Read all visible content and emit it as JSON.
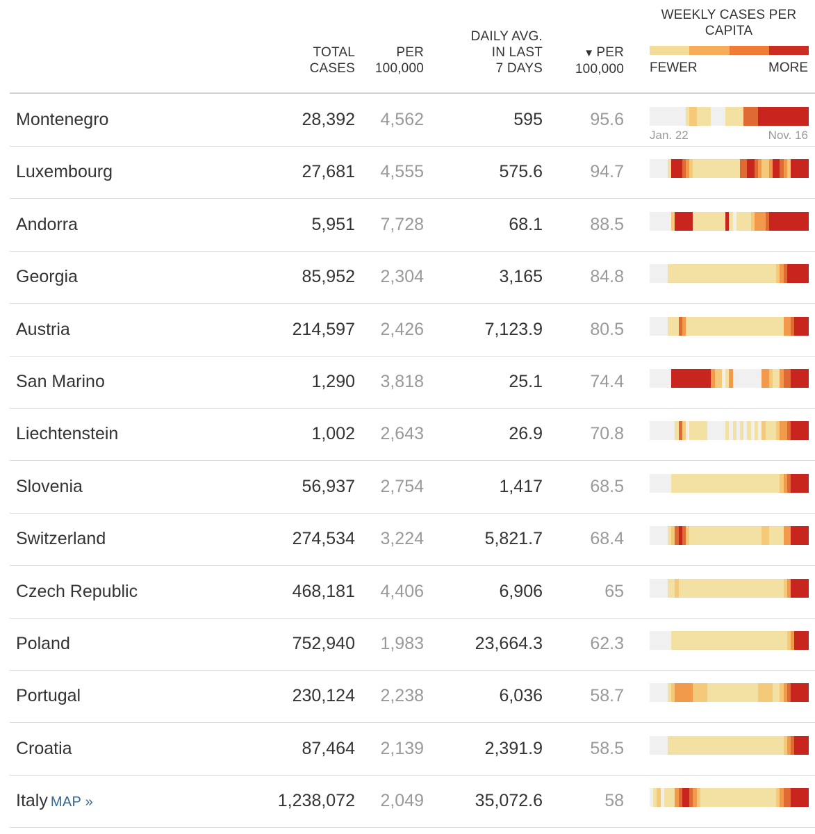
{
  "headers": {
    "total": [
      "TOTAL",
      "CASES"
    ],
    "per": [
      "PER",
      "100,000"
    ],
    "daily": [
      "DAILY AVG.",
      "IN LAST",
      "7 DAYS"
    ],
    "per2_arrow": "▼",
    "per2": [
      "PER",
      "100,000"
    ],
    "weekly": [
      "WEEKLY CASES PER",
      "CAPITA"
    ]
  },
  "legend": {
    "fewer": "FEWER",
    "more": "MORE",
    "colors": [
      "#f3dc97",
      "#f6ad5a",
      "#ee7c36",
      "#cb2d22"
    ]
  },
  "palette": {
    "0": "#f0f0f0",
    "1": "#f3e1a3",
    "2": "#f4c97a",
    "3": "#f19a4c",
    "4": "#e06a33",
    "5": "#c8251e"
  },
  "sparkline_dates": {
    "start": "Jan. 22",
    "end": "Nov. 16"
  },
  "rows": [
    {
      "country": "Montenegro",
      "total": "28,392",
      "per": "4,562",
      "daily": "595",
      "per2": "95.6",
      "levels": "00000000001221111000011111444455555555555555"
    },
    {
      "country": "Luxembourg",
      "total": "27,681",
      "per": "4,555",
      "daily": "575.6",
      "per2": "94.7",
      "levels": "00000155543211111111111114455432235543255555"
    },
    {
      "country": "Andorra",
      "total": "5,951",
      "per": "7,728",
      "daily": "68.1",
      "per2": "88.5",
      "levels": "00000025555511111111151011112333455555555555"
    },
    {
      "country": "Georgia",
      "total": "85,952",
      "per": "2,304",
      "daily": "3,165",
      "per2": "84.8",
      "levels": "00000111111111111111111111111111111234555555"
    },
    {
      "country": "Austria",
      "total": "214,597",
      "per": "2,426",
      "daily": "7,123.9",
      "per2": "80.5",
      "levels": "00000111431111111111111111111111111113345555"
    },
    {
      "country": "San Marino",
      "total": "1,290",
      "per": "3,818",
      "daily": "25.1",
      "per2": "74.4",
      "levels": "00000055555555555322013000000003321134455555"
    },
    {
      "country": "Liechtenstein",
      "total": "1,002",
      "per": "2,643",
      "daily": "26.9",
      "per2": "70.8",
      "levels": "00000001420111110000010101010102111233455555"
    },
    {
      "country": "Slovenia",
      "total": "56,937",
      "per": "2,754",
      "daily": "1,417",
      "per2": "68.5",
      "levels": "00000011111111111111111111111111111123455555"
    },
    {
      "country": "Switzerland",
      "total": "274,534",
      "per": "3,224",
      "daily": "5,821.7",
      "per2": "68.4",
      "levels": "00000124542111111111111111111112211113355555"
    },
    {
      "country": "Czech Republic",
      "total": "468,181",
      "per": "4,406",
      "daily": "6,906",
      "per2": "65",
      "levels": "00000112111111111111111111111111111112355555"
    },
    {
      "country": "Poland",
      "total": "752,940",
      "per": "1,983",
      "daily": "23,664.3",
      "per2": "62.3",
      "levels": "00000011111111111111111111111111111111235555"
    },
    {
      "country": "Portugal",
      "total": "230,124",
      "per": "2,238",
      "daily": "6,036",
      "per2": "58.7",
      "levels": "00000123333322221111111111111122221123455555"
    },
    {
      "country": "Croatia",
      "total": "87,464",
      "per": "2,139",
      "daily": "2,391.9",
      "per2": "58.5",
      "levels": "00000111111111111111111111111111111112345555"
    },
    {
      "country": "Italy",
      "map": "MAP »",
      "total": "1,238,072",
      "per": "2,049",
      "daily": "35,072.6",
      "per2": "58",
      "levels": "01201113455432111111111111111111111234455555"
    }
  ]
}
